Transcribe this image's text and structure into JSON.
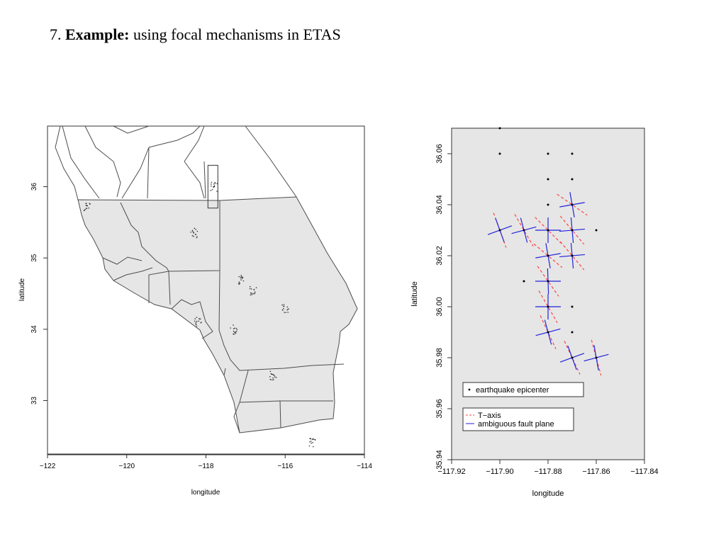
{
  "slide": {
    "number": "7.",
    "title_bold": "Example:",
    "title_rest": " using focal mechanisms in ETAS"
  },
  "chart_data": [
    {
      "type": "scatter",
      "subtype": "map",
      "xlabel": "longitude",
      "ylabel": "latitude",
      "xlim": [
        -122,
        -114
      ],
      "ylim": [
        32.25,
        36.85
      ],
      "xticks": [
        -122,
        -120,
        -118,
        -116,
        -114
      ],
      "yticks": [
        33,
        34,
        35,
        36
      ],
      "colors": {
        "region_fill": "#e6e6e6",
        "lines": "#4d4d4d",
        "points": "#333333"
      },
      "highlight_box": {
        "lon": [
          -117.95,
          -117.7
        ],
        "lat": [
          35.7,
          36.3
        ]
      },
      "epicenter_clusters": [
        {
          "lon": -117.8,
          "lat": 36.0
        },
        {
          "lon": -117.1,
          "lat": 34.7
        },
        {
          "lon": -118.3,
          "lat": 35.35
        },
        {
          "lon": -116.8,
          "lat": 34.55
        },
        {
          "lon": -115.3,
          "lat": 32.4
        },
        {
          "lon": -116.3,
          "lat": 33.35
        },
        {
          "lon": -117.3,
          "lat": 34.0
        },
        {
          "lon": -118.2,
          "lat": 34.1
        },
        {
          "lon": -121.0,
          "lat": 35.7
        },
        {
          "lon": -116.0,
          "lat": 34.3
        }
      ]
    },
    {
      "type": "scatter",
      "xlabel": "longitude",
      "ylabel": "latitude",
      "xlim": [
        -117.92,
        -117.84
      ],
      "ylim": [
        35.94,
        36.07
      ],
      "xticks": [
        -117.92,
        -117.9,
        -117.88,
        -117.86,
        -117.84
      ],
      "xtick_labels": [
        "−117.92",
        "−117.90",
        "−117.88",
        "−117.86",
        "−117.84"
      ],
      "yticks": [
        35.94,
        35.96,
        35.98,
        36.0,
        36.02,
        36.04,
        36.06
      ],
      "ytick_labels": [
        "35.94",
        "35.96",
        "35.98",
        "36.00",
        "36.02",
        "36.04",
        "36.06"
      ],
      "background": "#e6e6e6",
      "epicenters_only": [
        [
          -117.9,
          36.07
        ],
        [
          -117.9,
          36.06
        ],
        [
          -117.88,
          36.06
        ],
        [
          -117.87,
          36.06
        ],
        [
          -117.88,
          36.05
        ],
        [
          -117.87,
          36.05
        ],
        [
          -117.88,
          36.04
        ],
        [
          -117.89,
          36.01
        ],
        [
          -117.87,
          36.0
        ],
        [
          -117.87,
          35.99
        ],
        [
          -117.86,
          36.03
        ]
      ],
      "focal_mechanisms": [
        {
          "lon": -117.87,
          "lat": 36.04,
          "t_axis_deg": 125,
          "plane1_deg": 80,
          "plane2_deg": 170
        },
        {
          "lon": -117.9,
          "lat": 36.03,
          "t_axis_deg": 160,
          "plane1_deg": 70,
          "plane2_deg": 160
        },
        {
          "lon": -117.89,
          "lat": 36.03,
          "t_axis_deg": 150,
          "plane1_deg": 75,
          "plane2_deg": 165
        },
        {
          "lon": -117.88,
          "lat": 36.03,
          "t_axis_deg": 135,
          "plane1_deg": 90,
          "plane2_deg": 180
        },
        {
          "lon": -117.87,
          "lat": 36.03,
          "t_axis_deg": 140,
          "plane1_deg": 85,
          "plane2_deg": 175
        },
        {
          "lon": -117.88,
          "lat": 36.02,
          "t_axis_deg": 130,
          "plane1_deg": 80,
          "plane2_deg": 170
        },
        {
          "lon": -117.87,
          "lat": 36.02,
          "t_axis_deg": 140,
          "plane1_deg": 85,
          "plane2_deg": 175
        },
        {
          "lon": -117.88,
          "lat": 36.01,
          "t_axis_deg": 145,
          "plane1_deg": 90,
          "plane2_deg": 178
        },
        {
          "lon": -117.88,
          "lat": 36.0,
          "t_axis_deg": 150,
          "plane1_deg": 90,
          "plane2_deg": 180
        },
        {
          "lon": -117.88,
          "lat": 35.99,
          "t_axis_deg": 155,
          "plane1_deg": 75,
          "plane2_deg": 165
        },
        {
          "lon": -117.87,
          "lat": 35.98,
          "t_axis_deg": 155,
          "plane1_deg": 70,
          "plane2_deg": 160
        },
        {
          "lon": -117.86,
          "lat": 35.98,
          "t_axis_deg": 165,
          "plane1_deg": 75,
          "plane2_deg": 170
        }
      ],
      "legend": [
        {
          "label": "earthquake epicenter",
          "marker": "point"
        },
        {
          "label": "T−axis",
          "marker": "dashed-line",
          "color": "#ff4444"
        },
        {
          "label": "ambiguous fault plane",
          "marker": "line",
          "color": "#2222dd"
        }
      ],
      "legend_position": "bottom-left",
      "colors": {
        "t_axis": "#ff4444",
        "fault_plane": "#2222dd",
        "point": "#000000"
      }
    }
  ]
}
